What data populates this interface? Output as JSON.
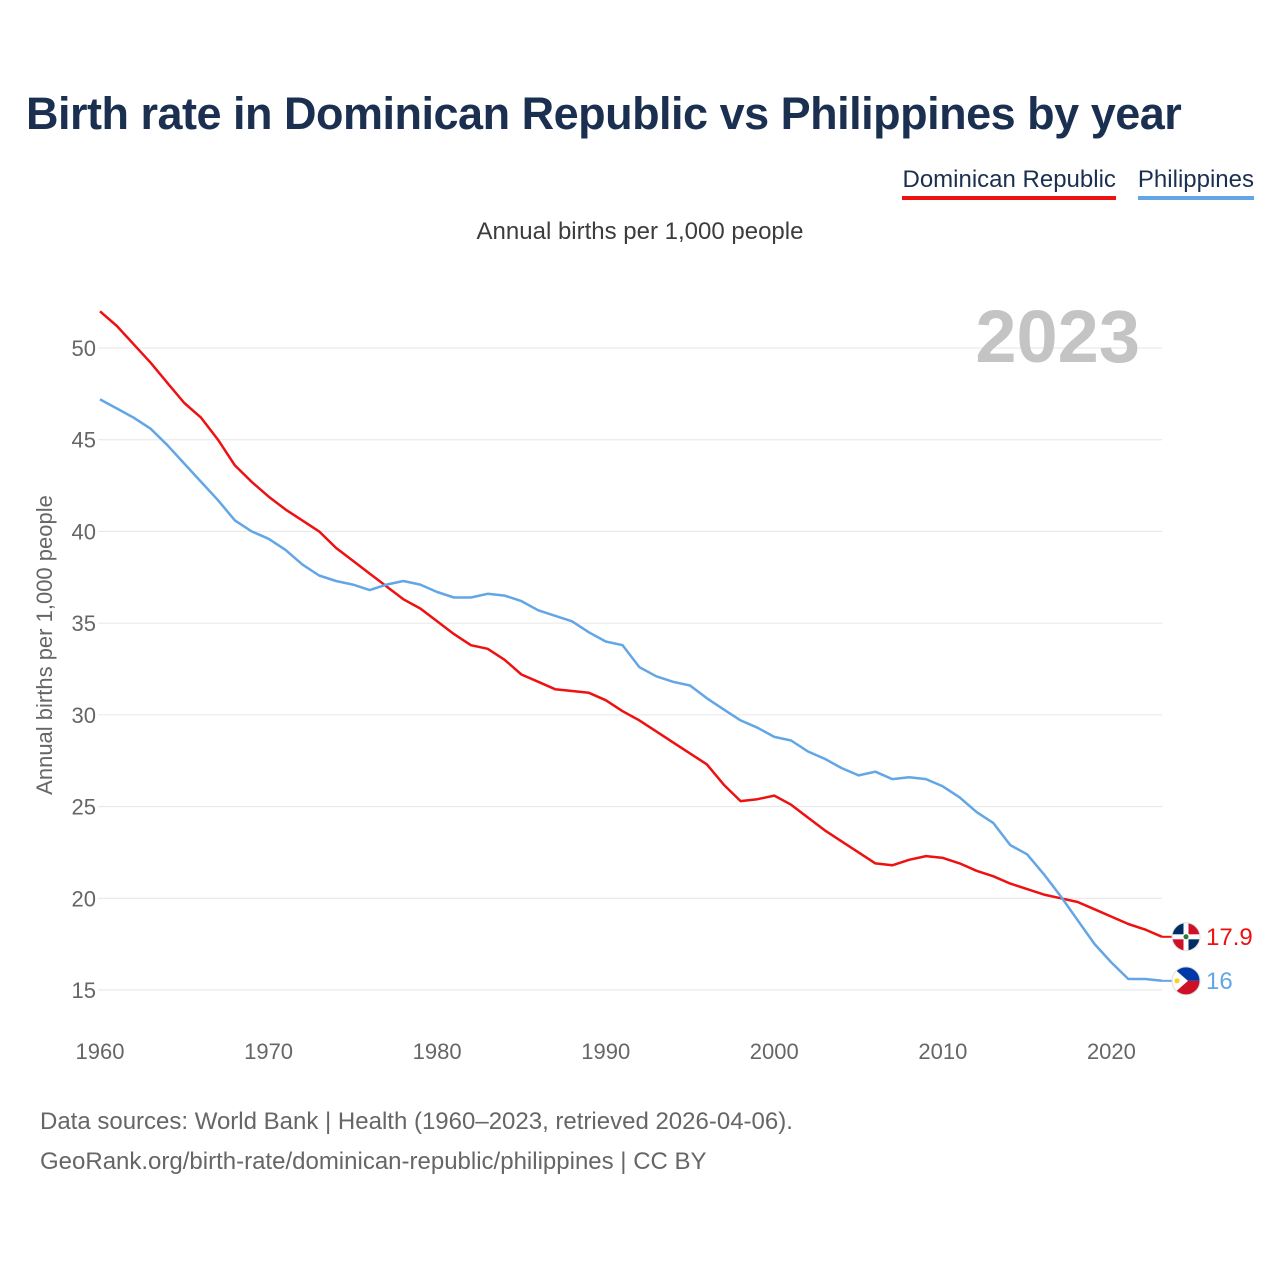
{
  "header": {
    "title": "Birth rate in Dominican Republic vs Philippines by year",
    "subtitle": "Annual births per 1,000 people"
  },
  "legend": [
    {
      "name": "Dominican Republic",
      "color": "#ee1111"
    },
    {
      "name": "Philippines",
      "color": "#62a6e6"
    }
  ],
  "year_watermark": "2023",
  "footer": {
    "sources": "Data sources: World Bank | Health (1960–2023, retrieved 2026-04-06).",
    "attribution": "GeoRank.org/birth-rate/dominican-republic/philippines | CC BY"
  },
  "chart_data": {
    "type": "line",
    "title": "Birth rate in Dominican Republic vs Philippines by year",
    "xlabel": "",
    "ylabel": "Annual births per 1,000 people",
    "xlim": [
      1960,
      2023
    ],
    "ylim": [
      15,
      52
    ],
    "x_ticks": [
      1960,
      1970,
      1980,
      1990,
      2000,
      2010,
      2020
    ],
    "y_ticks": [
      15,
      20,
      25,
      30,
      35,
      40,
      45,
      50
    ],
    "grid": true,
    "x": [
      1960,
      1961,
      1962,
      1963,
      1964,
      1965,
      1966,
      1967,
      1968,
      1969,
      1970,
      1971,
      1972,
      1973,
      1974,
      1975,
      1976,
      1977,
      1978,
      1979,
      1980,
      1981,
      1982,
      1983,
      1984,
      1985,
      1986,
      1987,
      1988,
      1989,
      1990,
      1991,
      1992,
      1993,
      1994,
      1995,
      1996,
      1997,
      1998,
      1999,
      2000,
      2001,
      2002,
      2003,
      2004,
      2005,
      2006,
      2007,
      2008,
      2009,
      2010,
      2011,
      2012,
      2013,
      2014,
      2015,
      2016,
      2017,
      2018,
      2019,
      2020,
      2021,
      2022,
      2023
    ],
    "series": [
      {
        "name": "Dominican Republic",
        "color": "#ee1111",
        "end_label": "17.9",
        "values": [
          52.0,
          51.2,
          50.2,
          49.2,
          48.1,
          47.0,
          46.2,
          45.0,
          43.6,
          42.7,
          41.9,
          41.2,
          40.6,
          40.0,
          39.1,
          38.4,
          37.7,
          37.0,
          36.3,
          35.8,
          35.1,
          34.4,
          33.8,
          33.6,
          33.0,
          32.2,
          31.8,
          31.4,
          31.3,
          31.2,
          30.8,
          30.2,
          29.7,
          29.1,
          28.5,
          27.9,
          27.3,
          26.2,
          25.3,
          25.4,
          25.6,
          25.1,
          24.4,
          23.7,
          23.1,
          22.5,
          21.9,
          21.8,
          22.1,
          22.3,
          22.2,
          21.9,
          21.5,
          21.2,
          20.8,
          20.5,
          20.2,
          20.0,
          19.8,
          19.4,
          19.0,
          18.6,
          18.3,
          17.9
        ]
      },
      {
        "name": "Philippines",
        "color": "#62a6e6",
        "end_label": "16",
        "values": [
          47.2,
          46.7,
          46.2,
          45.6,
          44.7,
          43.7,
          42.7,
          41.7,
          40.6,
          40.0,
          39.6,
          39.0,
          38.2,
          37.6,
          37.3,
          37.1,
          36.8,
          37.1,
          37.3,
          37.1,
          36.7,
          36.4,
          36.4,
          36.6,
          36.5,
          36.2,
          35.7,
          35.4,
          35.1,
          34.5,
          34.0,
          33.8,
          32.6,
          32.1,
          31.8,
          31.6,
          30.9,
          30.3,
          29.7,
          29.3,
          28.8,
          28.6,
          28.0,
          27.6,
          27.1,
          26.7,
          26.9,
          26.5,
          26.6,
          26.5,
          26.1,
          25.5,
          24.7,
          24.1,
          22.9,
          22.4,
          21.3,
          20.1,
          18.8,
          17.5,
          16.5,
          15.6,
          15.6,
          15.5
        ]
      }
    ]
  }
}
